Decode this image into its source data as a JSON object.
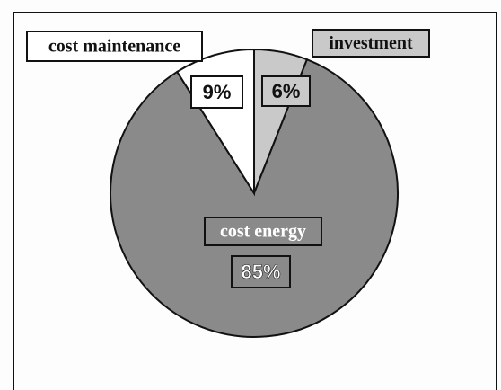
{
  "chart_data": {
    "type": "pie",
    "categories": [
      "investment",
      "cost energy",
      "cost maintenance"
    ],
    "values": [
      6,
      85,
      9
    ],
    "value_labels": [
      "6%",
      "85%",
      "9%"
    ],
    "colors": [
      "#c9c9c9",
      "#8a8a8a",
      "#ffffff"
    ],
    "start_angle": 90,
    "direction": "clockwise"
  }
}
